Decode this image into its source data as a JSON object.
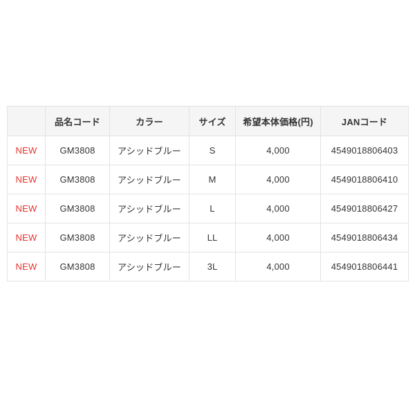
{
  "table": {
    "headers": [
      "",
      "品名コード",
      "カラー",
      "サイズ",
      "希望本体価格(円)",
      "JANコード"
    ],
    "rows": [
      {
        "badge": "NEW",
        "code": "GM3808",
        "color": "アシッドブルー",
        "size": "S",
        "price": "4,000",
        "jan": "4549018806403"
      },
      {
        "badge": "NEW",
        "code": "GM3808",
        "color": "アシッドブルー",
        "size": "M",
        "price": "4,000",
        "jan": "4549018806410"
      },
      {
        "badge": "NEW",
        "code": "GM3808",
        "color": "アシッドブルー",
        "size": "L",
        "price": "4,000",
        "jan": "4549018806427"
      },
      {
        "badge": "NEW",
        "code": "GM3808",
        "color": "アシッドブルー",
        "size": "LL",
        "price": "4,000",
        "jan": "4549018806434"
      },
      {
        "badge": "NEW",
        "code": "GM3808",
        "color": "アシッドブルー",
        "size": "3L",
        "price": "4,000",
        "jan": "4549018806441"
      }
    ]
  },
  "colors": {
    "badge_red": "#e6322d",
    "header_bg": "#f5f5f5",
    "border": "#e3e3e3",
    "text": "#333333",
    "page_bg": "#ffffff"
  }
}
